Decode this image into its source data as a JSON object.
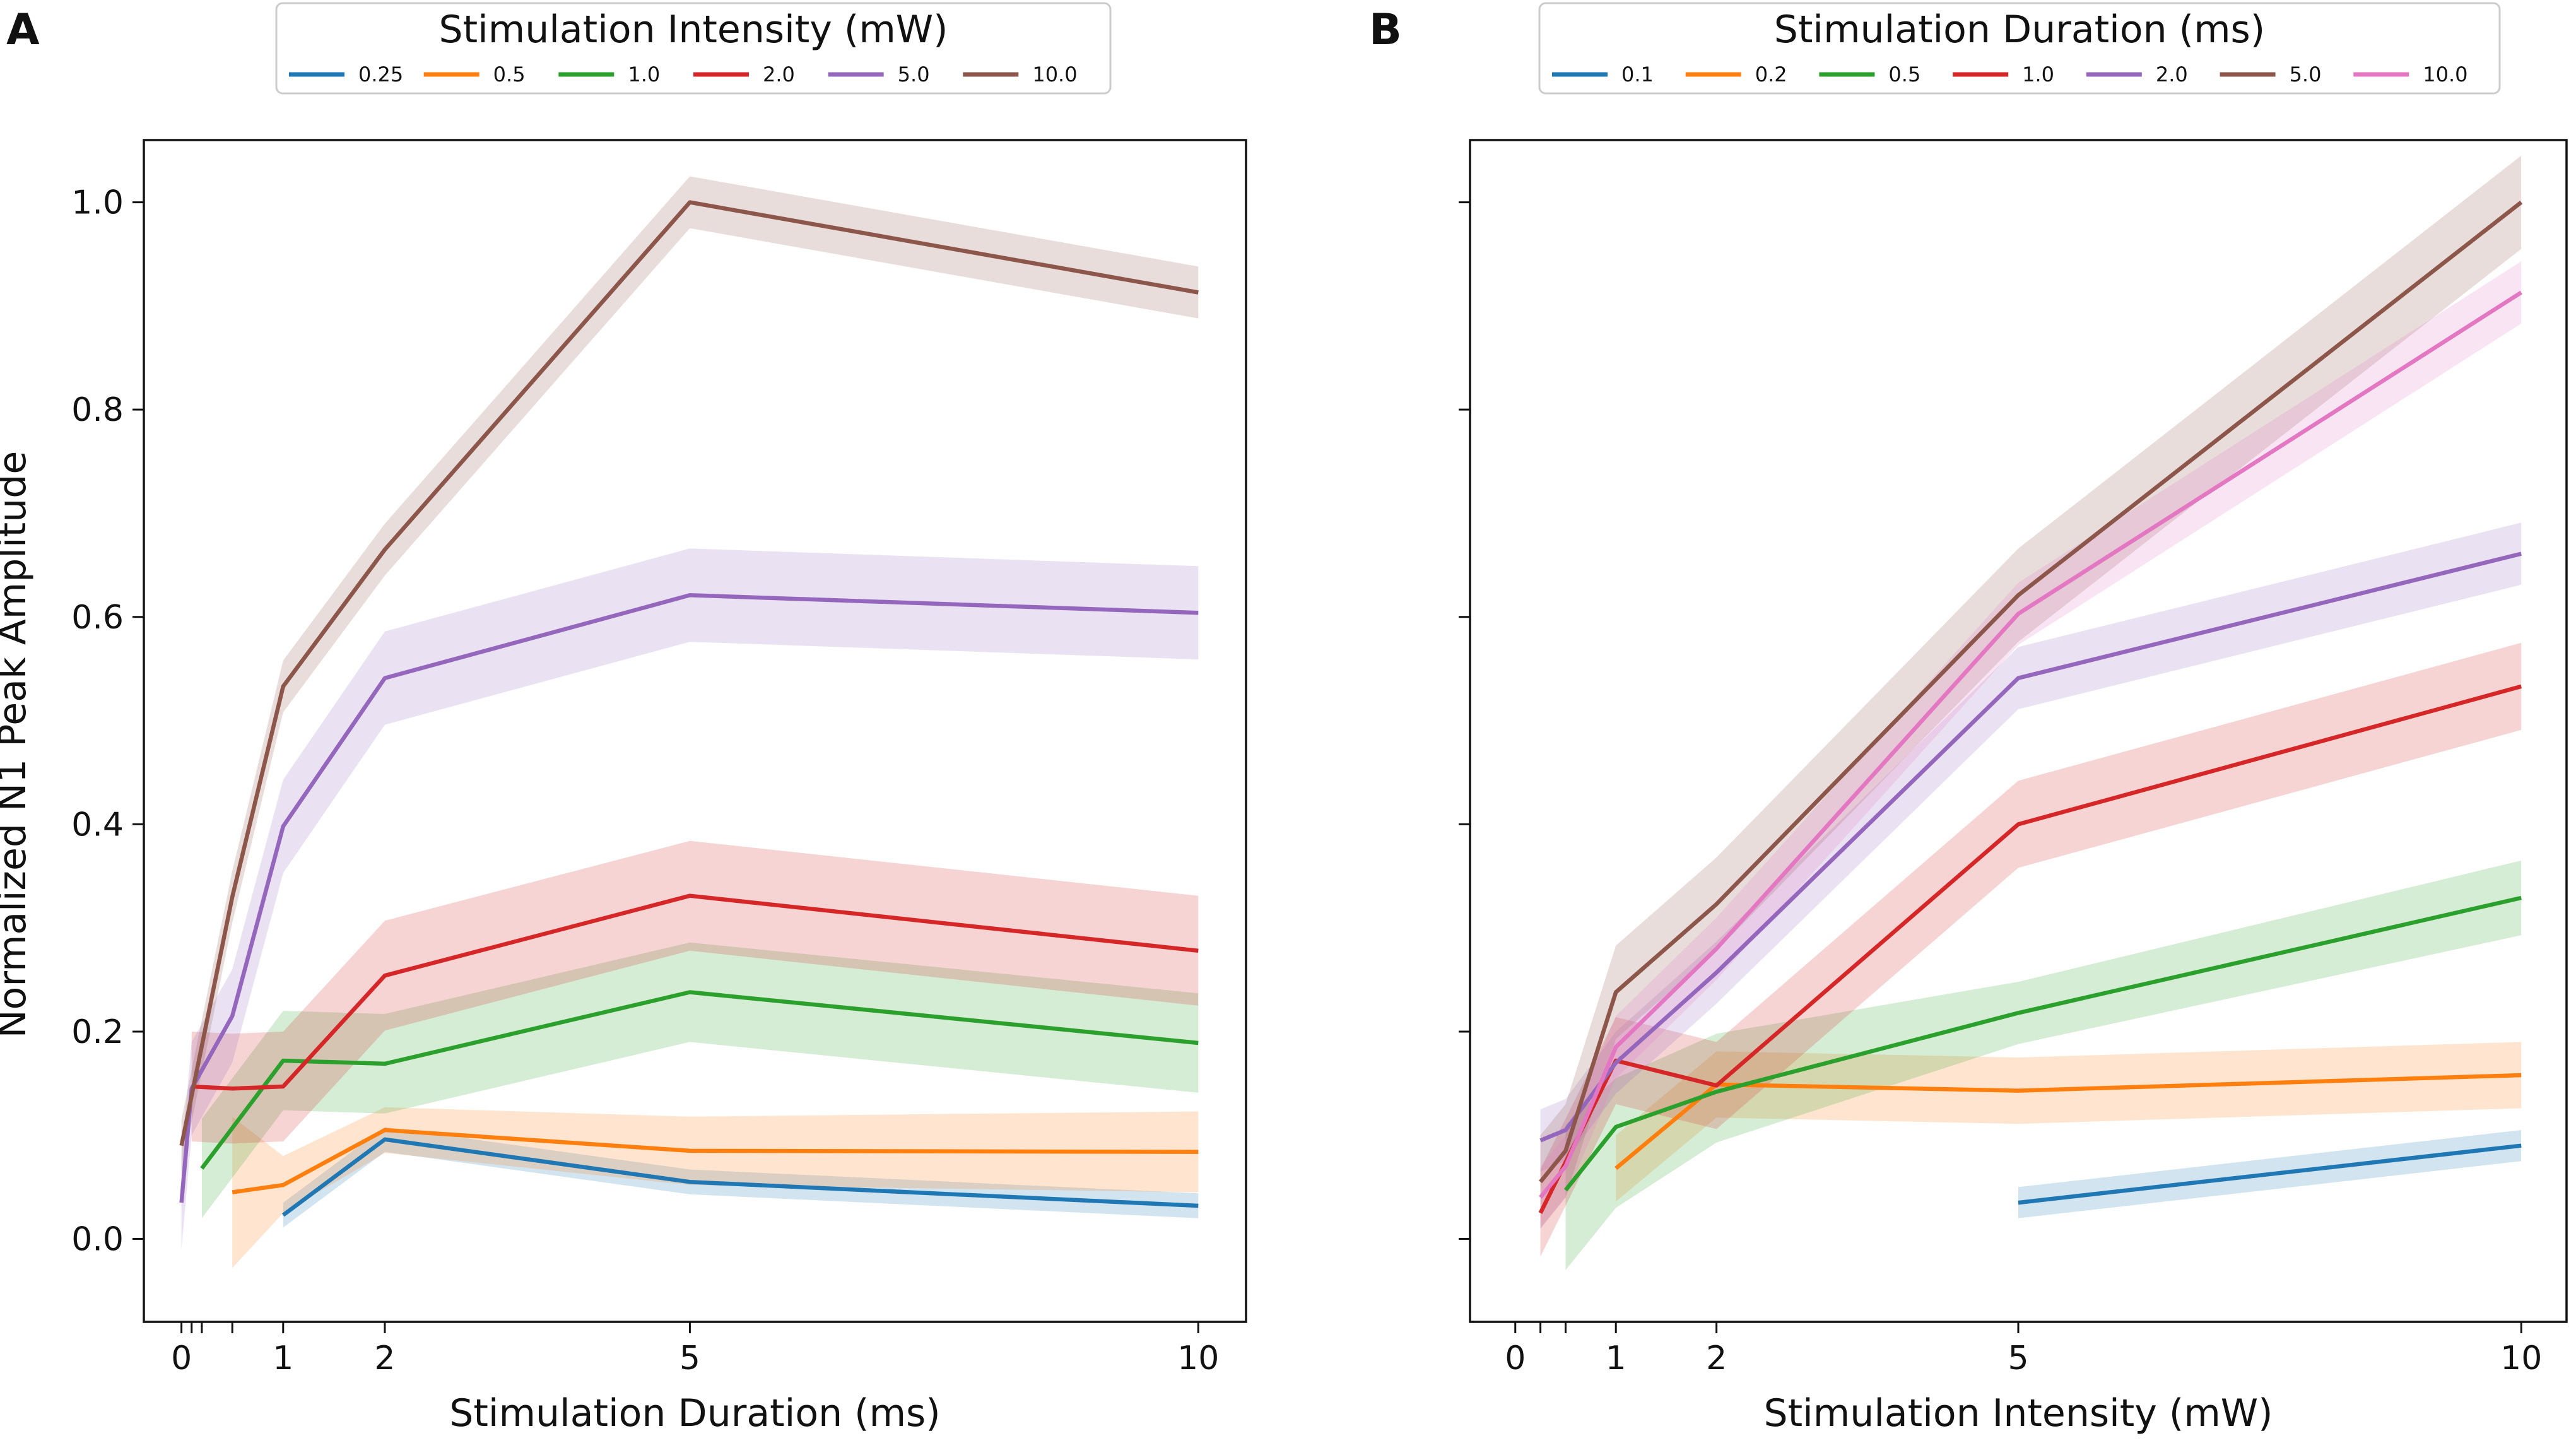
{
  "figure": {
    "shared_ylabel": "Normalized N1 Peak Amplitude"
  },
  "chart_data": [
    {
      "panel_label": "A",
      "type": "line",
      "xlabel": "Stimulation Duration (ms)",
      "ylabel": "Normalized N1 Peak Amplitude",
      "xlim": [
        -0.37,
        10.47
      ],
      "ylim": [
        -0.08,
        1.06
      ],
      "xticks": [
        0,
        0.1,
        0.2,
        0.5,
        1,
        2,
        5,
        10
      ],
      "xtick_labels": [
        "0",
        "",
        "",
        "",
        "1",
        "2",
        "5",
        "10"
      ],
      "yticks": [
        0.0,
        0.2,
        0.4,
        0.6,
        0.8,
        1.0
      ],
      "ytick_labels": [
        "0.0",
        "0.2",
        "0.4",
        "0.6",
        "0.8",
        "1.0"
      ],
      "legend": {
        "title": "Stimulation Intensity (mW)",
        "placement": "top-center",
        "ncol": 7
      },
      "series": [
        {
          "name": "0.25",
          "color": "#1f77b4",
          "x": [
            1,
            2,
            5,
            10
          ],
          "y": [
            0.023,
            0.096,
            0.055,
            0.032
          ],
          "band": 0.012
        },
        {
          "name": "0.5",
          "color": "#ff7f0e",
          "x": [
            0.5,
            1,
            2,
            5,
            10
          ],
          "y": [
            0.045,
            0.052,
            0.105,
            0.085,
            0.084
          ],
          "band_lower": [
            -0.028,
            0.025,
            0.083,
            0.052,
            0.045
          ],
          "band_upper": [
            0.118,
            0.08,
            0.127,
            0.118,
            0.123
          ]
        },
        {
          "name": "1.0",
          "color": "#2ca02c",
          "x": [
            0.2,
            1,
            2,
            5,
            10
          ],
          "y": [
            0.068,
            0.172,
            0.169,
            0.238,
            0.189
          ],
          "band": 0.048
        },
        {
          "name": "2.0",
          "color": "#d62728",
          "x": [
            0.1,
            0.5,
            1,
            2,
            5,
            10
          ],
          "y": [
            0.147,
            0.145,
            0.147,
            0.254,
            0.331,
            0.278
          ],
          "band": 0.053
        },
        {
          "name": "5.0",
          "color": "#9467bd",
          "x": [
            0,
            0.1,
            0.5,
            1,
            2,
            5,
            10
          ],
          "y": [
            0.035,
            0.145,
            0.215,
            0.398,
            0.541,
            0.621,
            0.604
          ],
          "band": 0.045
        },
        {
          "name": "10.0",
          "color": "#8c564b",
          "x": [
            0,
            0.5,
            1,
            2,
            5,
            10
          ],
          "y": [
            0.09,
            0.33,
            0.533,
            0.665,
            1.0,
            0.913
          ],
          "band": 0.025
        }
      ]
    },
    {
      "panel_label": "B",
      "type": "line",
      "xlabel": "Stimulation Intensity (mW)",
      "ylabel": "",
      "xlim": [
        -0.45,
        10.45
      ],
      "ylim": [
        -0.08,
        1.06
      ],
      "xticks": [
        0,
        0.25,
        0.5,
        1,
        2,
        5,
        10
      ],
      "xtick_labels": [
        "0",
        "",
        "",
        "1",
        "2",
        "5",
        "10"
      ],
      "yticks": [
        0.0,
        0.2,
        0.4,
        0.6,
        0.8,
        1.0
      ],
      "ytick_labels": [
        "",
        "",
        "",
        "",
        "",
        ""
      ],
      "legend": {
        "title": "Stimulation Duration (ms)",
        "placement": "top-center",
        "ncol": 7
      },
      "series": [
        {
          "name": "0.1",
          "color": "#1f77b4",
          "x": [
            5,
            10
          ],
          "y": [
            0.035,
            0.09
          ],
          "band": 0.015
        },
        {
          "name": "0.2",
          "color": "#ff7f0e",
          "x": [
            1,
            2,
            5,
            10
          ],
          "y": [
            0.068,
            0.149,
            0.143,
            0.158
          ],
          "band": 0.032
        },
        {
          "name": "0.5",
          "color": "#2ca02c",
          "x": [
            0.5,
            1,
            2,
            5,
            10
          ],
          "y": [
            0.047,
            0.108,
            0.142,
            0.218,
            0.329
          ],
          "band_lower": [
            -0.03,
            0.03,
            0.093,
            0.188,
            0.293
          ],
          "band_upper": [
            0.11,
            0.155,
            0.198,
            0.248,
            0.365
          ]
        },
        {
          "name": "1.0",
          "color": "#d62728",
          "x": [
            0.25,
            1,
            2,
            5,
            10
          ],
          "y": [
            0.025,
            0.172,
            0.148,
            0.4,
            0.533
          ],
          "band": 0.042
        },
        {
          "name": "2.0",
          "color": "#9467bd",
          "x": [
            0.25,
            0.5,
            1,
            2,
            5,
            10
          ],
          "y": [
            0.095,
            0.105,
            0.17,
            0.257,
            0.541,
            0.661
          ],
          "band": 0.03
        },
        {
          "name": "5.0",
          "color": "#8c564b",
          "x": [
            0.25,
            0.5,
            1,
            2,
            5,
            10
          ],
          "y": [
            0.055,
            0.085,
            0.238,
            0.323,
            0.621,
            1.0
          ],
          "band": 0.045
        },
        {
          "name": "10.0",
          "color": "#e377c2",
          "x": [
            0.25,
            0.5,
            1,
            2,
            5,
            10
          ],
          "y": [
            0.04,
            0.07,
            0.185,
            0.28,
            0.603,
            0.913
          ],
          "band": 0.03
        }
      ]
    }
  ]
}
